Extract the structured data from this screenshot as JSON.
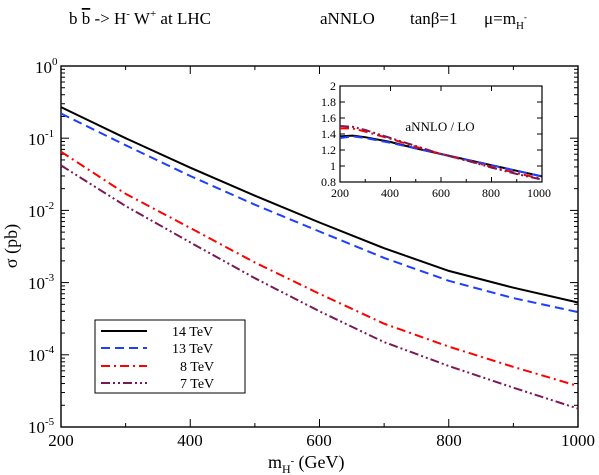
{
  "chart_data": [
    {
      "type": "line",
      "title_parts": {
        "process_prefix": "b ",
        "bbar_b": "b",
        "arrow": " -> H",
        "hminus_sup": "-",
        "w": " W",
        "wplus_sup": "+",
        "at_lhc": " at LHC",
        "order": "aNNLO",
        "tanb": "tanβ=1",
        "mu": "μ=m",
        "mu_sub": "H",
        "mu_subsup": "-"
      },
      "xlabel": {
        "m": "m",
        "sub": "H",
        "subsup": "-",
        "unit": " (GeV)"
      },
      "ylabel": "σ (pb)",
      "xlim": [
        200,
        1000
      ],
      "ylim_log10": [
        -5,
        0
      ],
      "yscale": "log",
      "x_ticks": [
        "200",
        "400",
        "600",
        "800",
        "1000"
      ],
      "y_ticks": [
        {
          "base": "10",
          "exp": "0"
        },
        {
          "base": "10",
          "exp": "-1"
        },
        {
          "base": "10",
          "exp": "-2"
        },
        {
          "base": "10",
          "exp": "-3"
        },
        {
          "base": "10",
          "exp": "-4"
        },
        {
          "base": "10",
          "exp": "-5"
        }
      ],
      "legend_position": "bottom-left",
      "x": [
        200,
        300,
        400,
        500,
        600,
        700,
        800,
        900,
        1000
      ],
      "series": [
        {
          "name": "14 TeV",
          "color": "#000000",
          "dash": "solid",
          "values": [
            0.27,
            0.1,
            0.039,
            0.016,
            0.0068,
            0.003,
            0.00145,
            0.00085,
            0.00053
          ]
        },
        {
          "name": "13 TeV",
          "color": "#1f3fff",
          "dash": "dash",
          "values": [
            0.22,
            0.08,
            0.03,
            0.012,
            0.0051,
            0.0022,
            0.00106,
            0.00061,
            0.00039
          ]
        },
        {
          "name": "8 TeV",
          "color": "#ff0000",
          "dash": "dashdot",
          "values": [
            0.065,
            0.017,
            0.0057,
            0.0019,
            0.0007,
            0.00027,
            0.00013,
            6.8e-05,
            3.7e-05
          ]
        },
        {
          "name": "7 TeV",
          "color": "#7a1a55",
          "dash": "dashdotdot",
          "values": [
            0.042,
            0.0115,
            0.0036,
            0.00115,
            0.0004,
            0.00015,
            7e-05,
            3.5e-05,
            1.8e-05
          ]
        }
      ]
    },
    {
      "type": "line",
      "label": "aNNLO / LO",
      "xlim": [
        200,
        1000
      ],
      "ylim": [
        0.8,
        2.0
      ],
      "x_ticks": [
        "200",
        "400",
        "600",
        "800",
        "1000"
      ],
      "y_ticks": [
        "2",
        "1.8",
        "1.6",
        "1.4",
        "1.2",
        "1",
        "0.8"
      ],
      "x": [
        200,
        250,
        300,
        400,
        500,
        600,
        700,
        800,
        900,
        1000
      ],
      "series": [
        {
          "name": "14 TeV",
          "color": "#000000",
          "dash": "solid",
          "values": [
            1.37,
            1.38,
            1.36,
            1.3,
            1.22,
            1.15,
            1.08,
            1.01,
            0.94,
            0.87
          ]
        },
        {
          "name": "13 TeV",
          "color": "#1f3fff",
          "dash": "dash",
          "values": [
            1.35,
            1.37,
            1.35,
            1.29,
            1.22,
            1.15,
            1.08,
            1.01,
            0.94,
            0.87
          ]
        },
        {
          "name": "8 TeV",
          "color": "#ff0000",
          "dash": "dashdot",
          "values": [
            1.47,
            1.47,
            1.43,
            1.34,
            1.24,
            1.15,
            1.07,
            0.99,
            0.91,
            0.84
          ]
        },
        {
          "name": "7 TeV",
          "color": "#7a1a55",
          "dash": "dashdotdot",
          "values": [
            1.5,
            1.49,
            1.45,
            1.35,
            1.25,
            1.15,
            1.07,
            0.98,
            0.9,
            0.83
          ]
        }
      ]
    }
  ]
}
